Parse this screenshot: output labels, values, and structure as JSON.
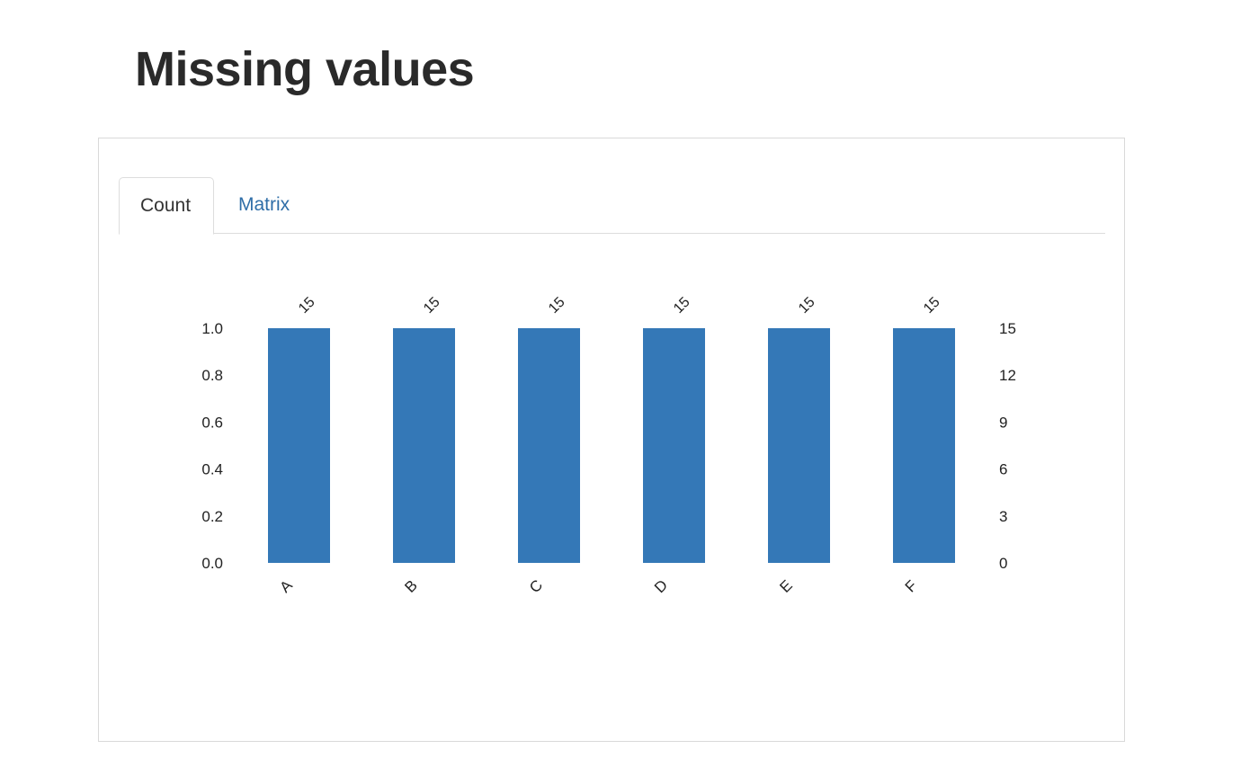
{
  "page_title": "Missing values",
  "tabs": [
    {
      "label": "Count",
      "active": true
    },
    {
      "label": "Matrix",
      "active": false
    }
  ],
  "colors": {
    "bar": "#3478b7",
    "tab_link": "#2f6ea8"
  },
  "chart_data": {
    "type": "bar",
    "categories": [
      "A",
      "B",
      "C",
      "D",
      "E",
      "F"
    ],
    "values": [
      15,
      15,
      15,
      15,
      15,
      15
    ],
    "bar_labels": [
      "15",
      "15",
      "15",
      "15",
      "15",
      "15"
    ],
    "left_axis": {
      "ticks": [
        "0.0",
        "0.2",
        "0.4",
        "0.6",
        "0.8",
        "1.0"
      ],
      "ylim": [
        0,
        1
      ]
    },
    "right_axis": {
      "ticks": [
        "0",
        "3",
        "6",
        "9",
        "12",
        "15"
      ],
      "ylim": [
        0,
        15
      ]
    },
    "grid": false,
    "title": "",
    "xlabel": "",
    "ylabel": ""
  }
}
